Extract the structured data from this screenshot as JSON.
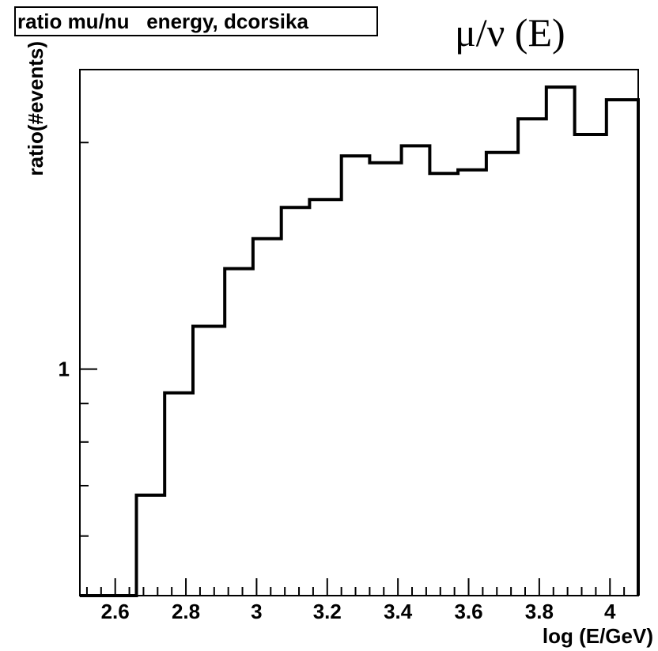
{
  "header": {
    "stats_title": "ratio mu/nu   energy, dcorsika",
    "handwritten_title": "μ/ν (E)"
  },
  "chart_data": {
    "type": "histogram",
    "xlabel": "log (E/GeV)",
    "ylabel": "ratio(#events)",
    "xlim": [
      2.5,
      4.08
    ],
    "ylim": [
      0.5,
      2.5
    ],
    "y_scale": "log",
    "x_tick_labels": [
      "2.6",
      "2.8",
      "3",
      "3.2",
      "3.4",
      "3.6",
      "3.8",
      "4"
    ],
    "x_ticks": [
      2.6,
      2.8,
      3.0,
      3.2,
      3.4,
      3.6,
      3.8,
      4.0
    ],
    "y_tick_labels": [
      "1"
    ],
    "y_ticks": [
      1
    ],
    "bin_edges": [
      2.5,
      2.58,
      2.66,
      2.74,
      2.82,
      2.91,
      2.99,
      3.07,
      3.15,
      3.24,
      3.32,
      3.41,
      3.49,
      3.57,
      3.65,
      3.74,
      3.82,
      3.9,
      3.99,
      4.08
    ],
    "values": [
      0.5,
      0.5,
      0.68,
      0.93,
      1.14,
      1.36,
      1.49,
      1.64,
      1.68,
      1.92,
      1.88,
      1.98,
      1.82,
      1.84,
      1.94,
      2.15,
      2.37,
      2.05,
      2.28
    ],
    "grid": false
  }
}
